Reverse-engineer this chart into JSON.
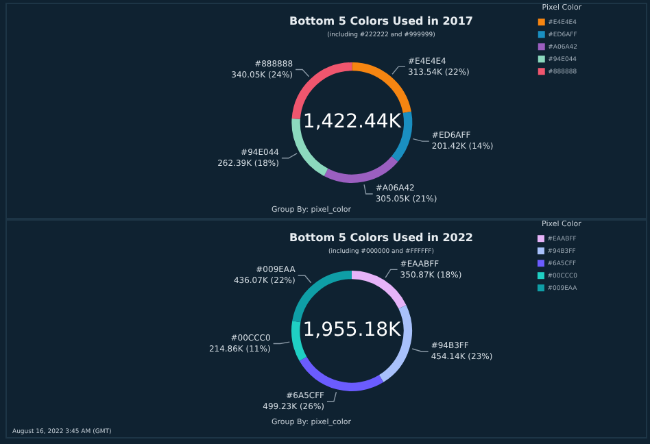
{
  "chart_data": [
    {
      "type": "donut",
      "title": "Bottom 5 Colors Used in 2017",
      "subtitle": "(including #222222 and #999999)",
      "legend": "top right",
      "legend_title": "Pixel Color",
      "categories": [
        "#E4E4E4",
        "#ED6AFF",
        "#A06A42",
        "#94E044",
        "#888888"
      ],
      "values": [
        313540,
        201420,
        305050,
        262390,
        340050
      ],
      "colors": [
        "#f68511",
        "#1a8fc1",
        "#9b5fc0",
        "#8cd9be",
        "#f0566e"
      ],
      "value_labels": [
        "313.54K (22%)",
        "201.42K (14%)",
        "305.05K (21%)",
        "262.39K (18%)",
        "340.05K (24%)"
      ],
      "annotations": [
        "1,422.44K",
        "Group By: pixel_color"
      ]
    },
    {
      "type": "donut",
      "title": "Bottom 5 Colors Used in 2022",
      "subtitle": "(including #000000 and #FFFFFF)",
      "legend": "top right",
      "legend_title": "Pixel Color",
      "categories": [
        "#EAABFF",
        "#94B3FF",
        "#6A5CFF",
        "#00CCC0",
        "#009EAA"
      ],
      "values": [
        350870,
        454140,
        499230,
        214860,
        436070
      ],
      "colors": [
        "#e6b3f8",
        "#a8c1fb",
        "#6b5cff",
        "#1fcfc3",
        "#0f9ea6"
      ],
      "value_labels": [
        "350.87K (18%)",
        "454.14K (23%)",
        "499.23K (26%)",
        "214.86K (11%)",
        "436.07K (22%)"
      ],
      "annotations": [
        "1,955.18K",
        "Group By: pixel_color",
        "August 16, 2022 3:45 AM (GMT)"
      ]
    }
  ]
}
